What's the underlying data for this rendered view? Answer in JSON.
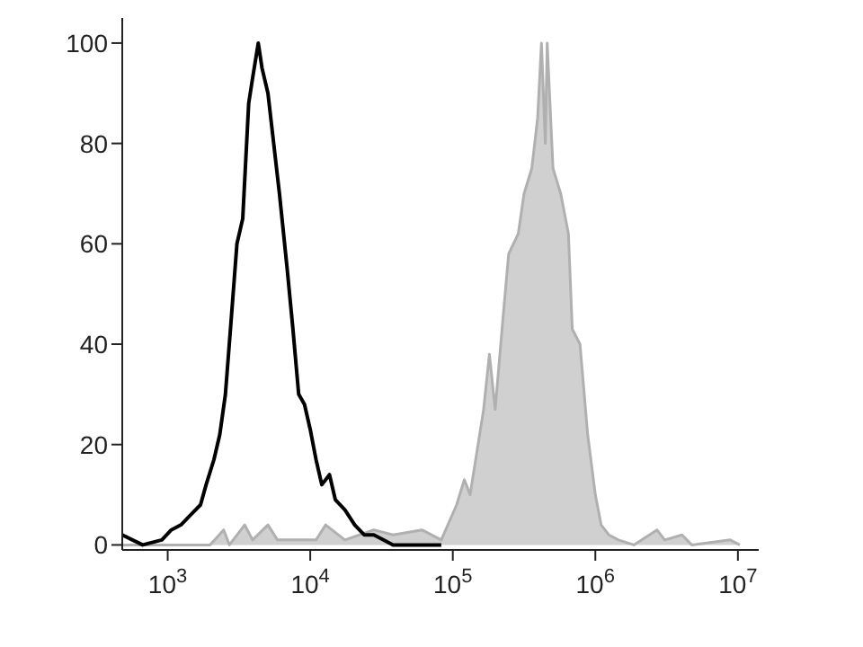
{
  "chart_data": {
    "type": "line",
    "log": "x",
    "xlim": [
      480,
      14000000
    ],
    "ylim": [
      -1,
      105
    ],
    "xticks": [
      {
        "value": 1000,
        "label": "10$^{3}$"
      },
      {
        "value": 10000,
        "label": "10$^{4}$"
      },
      {
        "value": 100000,
        "label": "10$^{5}$"
      },
      {
        "value": 1000000,
        "label": "10$^{6}$"
      },
      {
        "value": 10000000,
        "label": "10$^{7}$"
      }
    ],
    "yticks": [
      0,
      20,
      40,
      60,
      80,
      100
    ],
    "grid": false,
    "marker": "none",
    "line_style": "solid",
    "series": [
      {
        "type": "area",
        "color": "#b0b0b0",
        "x": [
          480,
          1980,
          2470,
          2710,
          3470,
          3940,
          5050,
          5890,
          10980,
          12830,
          17500,
          27900,
          38100,
          60800,
          83000,
          106400,
          120500,
          132300,
          164500,
          180700,
          198300,
          224600,
          246600,
          287900,
          316200,
          358100,
          393500,
          418800,
          445700,
          459500,
          504700,
          571700,
          647500,
          688900,
          780500,
          883500,
          1000000,
          1098000,
          1245000,
          1453000,
          1862000,
          2706000,
          3064000,
          4055000,
          4742000,
          8830000,
          10320000
        ],
        "values": [
          0,
          0,
          3,
          0,
          4,
          1,
          4,
          1,
          1,
          4,
          1,
          3,
          2,
          3,
          1,
          8,
          13,
          10,
          27,
          38,
          27,
          45,
          58,
          62,
          70,
          75,
          85,
          100,
          80,
          100,
          75,
          70,
          62,
          43,
          40,
          22,
          10,
          4,
          2,
          1,
          0,
          3,
          1,
          2,
          0,
          1,
          0
        ]
      },
      {
        "color": "#000000",
        "x": [
          480,
          667,
          910,
          1060,
          1240,
          1450,
          1700,
          1860,
          2110,
          2320,
          2540,
          2790,
          3060,
          3360,
          3700,
          3940,
          4320,
          4590,
          5050,
          5540,
          6080,
          6890,
          7560,
          8300,
          9110,
          10000,
          10980,
          12050,
          13650,
          15000,
          17500,
          20500,
          23900,
          27900,
          32600,
          38100,
          52000,
          83000
        ],
        "values": [
          2,
          0,
          1,
          3,
          4,
          6,
          8,
          12,
          17,
          22,
          30,
          45,
          60,
          65,
          88,
          93,
          100,
          95,
          90,
          80,
          70,
          55,
          43,
          30,
          28,
          23,
          17,
          12,
          14,
          9,
          7,
          4,
          2,
          2,
          1,
          0,
          0,
          0
        ]
      }
    ]
  }
}
